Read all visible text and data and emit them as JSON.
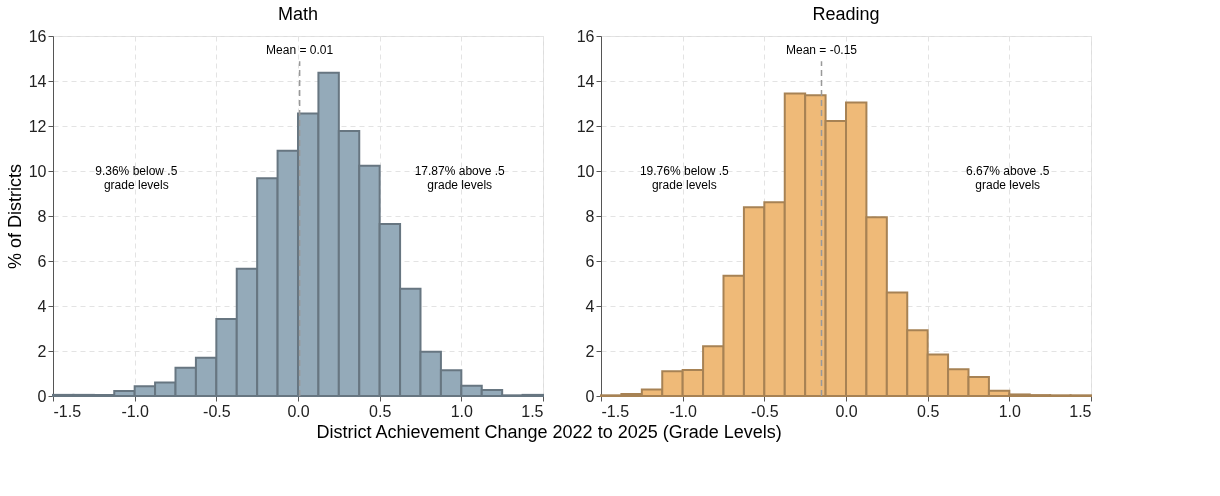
{
  "chart_data": [
    {
      "type": "histogram",
      "title": "Math",
      "ylabel": "% of Districts",
      "xlabel": "District Achievement Change 2022 to 2025 (Grade Levels)",
      "bins": [
        -1.5,
        -1.375,
        -1.25,
        -1.125,
        -1.0,
        -0.875,
        -0.75,
        -0.625,
        -0.5,
        -0.375,
        -0.25,
        -0.125,
        0.0,
        0.125,
        0.25,
        0.375,
        0.5,
        0.625,
        0.75,
        0.875,
        1.0,
        1.125,
        1.25,
        1.375,
        1.5
      ],
      "values": [
        0.05,
        0.05,
        0.05,
        0.22,
        0.43,
        0.6,
        1.26,
        1.7,
        3.42,
        5.66,
        9.68,
        10.9,
        12.56,
        14.37,
        11.78,
        10.23,
        7.64,
        4.77,
        1.97,
        1.15,
        0.46,
        0.27,
        0.03,
        0.05
      ],
      "color": "#94aab9",
      "xlim": [
        -1.5,
        1.5
      ],
      "xticks": [
        {
          "value": -1.5,
          "label": "-1.5"
        },
        {
          "value": -1.0,
          "label": "-1.0"
        },
        {
          "value": -0.5,
          "label": "-0.5"
        },
        {
          "value": 0,
          "label": "0.0"
        },
        {
          "value": 0.5,
          "label": "0.5"
        },
        {
          "value": 1.0,
          "label": "1.0"
        },
        {
          "value": 1.5,
          "label": "1.5"
        }
      ],
      "ylim": [
        0,
        16
      ],
      "yticks": [
        0,
        2,
        4,
        6,
        8,
        10,
        12,
        14,
        16
      ],
      "grid": true,
      "ref_lines": [
        {
          "axis": "x",
          "value": 0.01,
          "label": "Mean = 0.01",
          "color": "#999999",
          "line_style": "dashed"
        }
      ],
      "annotations": [
        "9.36% below .5\ngrade levels",
        "17.87% above .5\ngrade levels"
      ]
    },
    {
      "type": "histogram",
      "title": "Reading",
      "bins": [
        -1.5,
        -1.375,
        -1.25,
        -1.125,
        -1.0,
        -0.875,
        -0.75,
        -0.625,
        -0.5,
        -0.375,
        -0.25,
        -0.125,
        0.0,
        0.125,
        0.25,
        0.375,
        0.5,
        0.625,
        0.75,
        0.875,
        1.0,
        1.125,
        1.25,
        1.375,
        1.5
      ],
      "values": [
        0.03,
        0.09,
        0.29,
        1.1,
        1.16,
        2.21,
        5.34,
        8.39,
        8.61,
        13.45,
        13.37,
        12.22,
        13.05,
        7.95,
        4.6,
        2.92,
        1.84,
        1.19,
        0.84,
        0.23,
        0.07,
        0.04,
        0.03,
        0.03
      ],
      "color": "#efba78",
      "xlim": [
        -1.5,
        1.5
      ],
      "xticks": [
        {
          "value": -1.5,
          "label": "-1.5"
        },
        {
          "value": -1.0,
          "label": "-1.0"
        },
        {
          "value": -0.5,
          "label": "-0.5"
        },
        {
          "value": 0,
          "label": "0.0"
        },
        {
          "value": 0.5,
          "label": "0.5"
        },
        {
          "value": 1.0,
          "label": "1.0"
        },
        {
          "value": 1.5,
          "label": "1.5"
        }
      ],
      "ylim": [
        0,
        16
      ],
      "yticks": [
        0,
        2,
        4,
        6,
        8,
        10,
        12,
        14,
        16
      ],
      "grid": true,
      "ref_lines": [
        {
          "axis": "x",
          "value": -0.15,
          "label": "Mean = -0.15",
          "color": "#999999",
          "line_style": "dashed"
        }
      ],
      "annotations": [
        "19.76% below .5\ngrade levels",
        "6.67% above .5\ngrade levels"
      ]
    }
  ]
}
